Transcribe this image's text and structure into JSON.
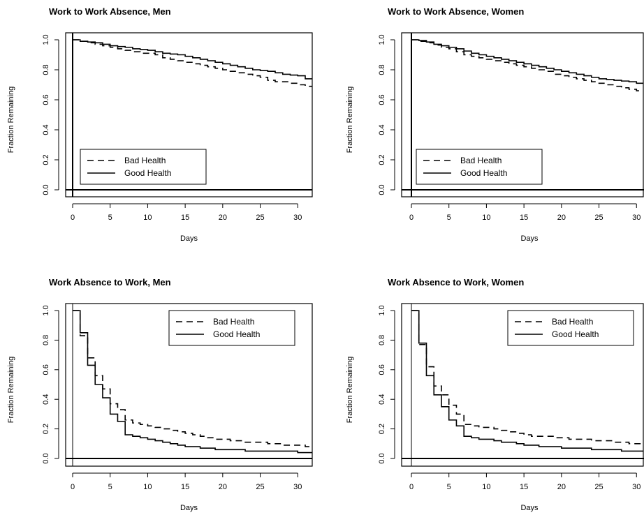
{
  "chart_data": [
    {
      "type": "line",
      "title": "Work to Work Absence, Men",
      "xlabel": "Days",
      "ylabel": "Fraction Remaining",
      "xlim": [
        0,
        31
      ],
      "ylim": [
        0,
        1
      ],
      "xticks": [
        0,
        5,
        10,
        15,
        20,
        25,
        30
      ],
      "yticks": [
        0.0,
        0.2,
        0.4,
        0.6,
        0.8,
        1.0
      ],
      "ytick_labels": [
        "0.0",
        "0.2",
        "0.4",
        "0.6",
        "0.8",
        "1.0"
      ],
      "legend_position": "bottom-left",
      "series": [
        {
          "name": "Bad Health",
          "style": "dashed",
          "x": [
            0,
            1,
            2,
            3,
            4,
            5,
            6,
            7,
            8,
            9,
            10,
            11,
            12,
            13,
            14,
            15,
            16,
            17,
            18,
            19,
            20,
            21,
            22,
            23,
            24,
            25,
            26,
            27,
            28,
            29,
            30,
            31
          ],
          "y": [
            1.0,
            0.99,
            0.98,
            0.97,
            0.96,
            0.95,
            0.94,
            0.93,
            0.92,
            0.91,
            0.91,
            0.9,
            0.88,
            0.87,
            0.86,
            0.85,
            0.84,
            0.83,
            0.82,
            0.81,
            0.8,
            0.79,
            0.78,
            0.77,
            0.76,
            0.75,
            0.73,
            0.72,
            0.72,
            0.71,
            0.7,
            0.69
          ]
        },
        {
          "name": "Good Health",
          "style": "solid",
          "x": [
            0,
            1,
            2,
            3,
            4,
            5,
            6,
            7,
            8,
            9,
            10,
            11,
            12,
            13,
            14,
            15,
            16,
            17,
            18,
            19,
            20,
            21,
            22,
            23,
            24,
            25,
            26,
            27,
            28,
            29,
            30,
            31
          ],
          "y": [
            1.0,
            0.99,
            0.985,
            0.98,
            0.97,
            0.96,
            0.955,
            0.95,
            0.94,
            0.935,
            0.93,
            0.92,
            0.91,
            0.905,
            0.9,
            0.89,
            0.88,
            0.87,
            0.86,
            0.85,
            0.84,
            0.83,
            0.82,
            0.81,
            0.8,
            0.795,
            0.79,
            0.78,
            0.77,
            0.765,
            0.76,
            0.74
          ]
        }
      ]
    },
    {
      "type": "line",
      "title": "Work to Work Absence, Women",
      "xlabel": "Days",
      "ylabel": "Fraction Remaining",
      "xlim": [
        0,
        31
      ],
      "ylim": [
        0,
        1
      ],
      "xticks": [
        0,
        5,
        10,
        15,
        20,
        25,
        30
      ],
      "yticks": [
        0.0,
        0.2,
        0.4,
        0.6,
        0.8,
        1.0
      ],
      "ytick_labels": [
        "0.0",
        "0.2",
        "0.4",
        "0.6",
        "0.8",
        "1.0"
      ],
      "legend_position": "bottom-left",
      "series": [
        {
          "name": "Bad Health",
          "style": "dashed",
          "x": [
            0,
            1,
            2,
            3,
            4,
            5,
            6,
            7,
            8,
            9,
            10,
            11,
            12,
            13,
            14,
            15,
            16,
            17,
            18,
            19,
            20,
            21,
            22,
            23,
            24,
            25,
            26,
            27,
            28,
            29,
            30,
            31
          ],
          "y": [
            1.0,
            0.99,
            0.98,
            0.965,
            0.95,
            0.94,
            0.92,
            0.9,
            0.89,
            0.88,
            0.87,
            0.86,
            0.85,
            0.84,
            0.83,
            0.82,
            0.81,
            0.8,
            0.79,
            0.77,
            0.76,
            0.75,
            0.74,
            0.73,
            0.72,
            0.71,
            0.7,
            0.69,
            0.68,
            0.67,
            0.66,
            0.65
          ]
        },
        {
          "name": "Good Health",
          "style": "solid",
          "x": [
            0,
            1,
            2,
            3,
            4,
            5,
            6,
            7,
            8,
            9,
            10,
            11,
            12,
            13,
            14,
            15,
            16,
            17,
            18,
            19,
            20,
            21,
            22,
            23,
            24,
            25,
            26,
            27,
            28,
            29,
            30,
            31
          ],
          "y": [
            1.0,
            0.995,
            0.985,
            0.97,
            0.96,
            0.95,
            0.94,
            0.925,
            0.91,
            0.9,
            0.89,
            0.88,
            0.87,
            0.86,
            0.85,
            0.84,
            0.83,
            0.82,
            0.81,
            0.8,
            0.79,
            0.78,
            0.77,
            0.76,
            0.75,
            0.74,
            0.735,
            0.73,
            0.725,
            0.72,
            0.71,
            0.7
          ]
        }
      ]
    },
    {
      "type": "line",
      "title": "Work Absence to Work, Men",
      "xlabel": "Days",
      "ylabel": "Fraction Remaining",
      "xlim": [
        0,
        31
      ],
      "ylim": [
        0,
        1
      ],
      "xticks": [
        0,
        5,
        10,
        15,
        20,
        25,
        30
      ],
      "yticks": [
        0.0,
        0.2,
        0.4,
        0.6,
        0.8,
        1.0
      ],
      "ytick_labels": [
        "0.0",
        "0.2",
        "0.4",
        "0.6",
        "0.8",
        "1.0"
      ],
      "legend_position": "top-right",
      "series": [
        {
          "name": "Bad Health",
          "style": "dashed",
          "x": [
            0,
            1,
            2,
            3,
            4,
            5,
            6,
            7,
            8,
            9,
            10,
            11,
            12,
            13,
            14,
            15,
            16,
            17,
            18,
            19,
            20,
            21,
            22,
            23,
            24,
            25,
            26,
            27,
            28,
            29,
            30,
            31
          ],
          "y": [
            1.0,
            0.83,
            0.68,
            0.56,
            0.47,
            0.37,
            0.33,
            0.26,
            0.24,
            0.23,
            0.22,
            0.21,
            0.2,
            0.19,
            0.18,
            0.17,
            0.16,
            0.15,
            0.14,
            0.13,
            0.13,
            0.12,
            0.12,
            0.11,
            0.11,
            0.11,
            0.1,
            0.1,
            0.09,
            0.09,
            0.09,
            0.08
          ]
        },
        {
          "name": "Good Health",
          "style": "solid",
          "x": [
            0,
            1,
            2,
            3,
            4,
            5,
            6,
            7,
            8,
            9,
            10,
            11,
            12,
            13,
            14,
            15,
            16,
            17,
            18,
            19,
            20,
            21,
            22,
            23,
            24,
            25,
            26,
            27,
            28,
            29,
            30,
            31
          ],
          "y": [
            1.0,
            0.85,
            0.63,
            0.5,
            0.41,
            0.3,
            0.25,
            0.16,
            0.15,
            0.14,
            0.13,
            0.12,
            0.11,
            0.1,
            0.09,
            0.08,
            0.08,
            0.07,
            0.07,
            0.06,
            0.06,
            0.06,
            0.06,
            0.05,
            0.05,
            0.05,
            0.05,
            0.05,
            0.05,
            0.05,
            0.04,
            0.04
          ]
        }
      ]
    },
    {
      "type": "line",
      "title": "Work Absence to Work, Women",
      "xlabel": "Days",
      "ylabel": "Fraction Remaining",
      "xlim": [
        0,
        31
      ],
      "ylim": [
        0,
        1
      ],
      "xticks": [
        0,
        5,
        10,
        15,
        20,
        25,
        30
      ],
      "yticks": [
        0.0,
        0.2,
        0.4,
        0.6,
        0.8,
        1.0
      ],
      "ytick_labels": [
        "0.0",
        "0.2",
        "0.4",
        "0.6",
        "0.8",
        "1.0"
      ],
      "legend_position": "top-right",
      "series": [
        {
          "name": "Bad Health",
          "style": "dashed",
          "x": [
            0,
            1,
            2,
            3,
            4,
            5,
            6,
            7,
            8,
            9,
            10,
            11,
            12,
            13,
            14,
            15,
            16,
            17,
            18,
            19,
            20,
            21,
            22,
            23,
            24,
            25,
            26,
            27,
            28,
            29,
            30,
            31
          ],
          "y": [
            1.0,
            0.77,
            0.62,
            0.49,
            0.43,
            0.36,
            0.3,
            0.23,
            0.22,
            0.21,
            0.21,
            0.2,
            0.19,
            0.18,
            0.17,
            0.16,
            0.15,
            0.15,
            0.15,
            0.14,
            0.14,
            0.13,
            0.13,
            0.13,
            0.12,
            0.12,
            0.12,
            0.11,
            0.11,
            0.1,
            0.1,
            0.09
          ]
        },
        {
          "name": "Good Health",
          "style": "solid",
          "x": [
            0,
            1,
            2,
            3,
            4,
            5,
            6,
            7,
            8,
            9,
            10,
            11,
            12,
            13,
            14,
            15,
            16,
            17,
            18,
            19,
            20,
            21,
            22,
            23,
            24,
            25,
            26,
            27,
            28,
            29,
            30,
            31
          ],
          "y": [
            1.0,
            0.78,
            0.56,
            0.43,
            0.35,
            0.26,
            0.22,
            0.15,
            0.14,
            0.13,
            0.13,
            0.12,
            0.11,
            0.11,
            0.1,
            0.09,
            0.09,
            0.08,
            0.08,
            0.08,
            0.07,
            0.07,
            0.07,
            0.07,
            0.06,
            0.06,
            0.06,
            0.06,
            0.05,
            0.05,
            0.05,
            0.05
          ]
        }
      ]
    }
  ]
}
